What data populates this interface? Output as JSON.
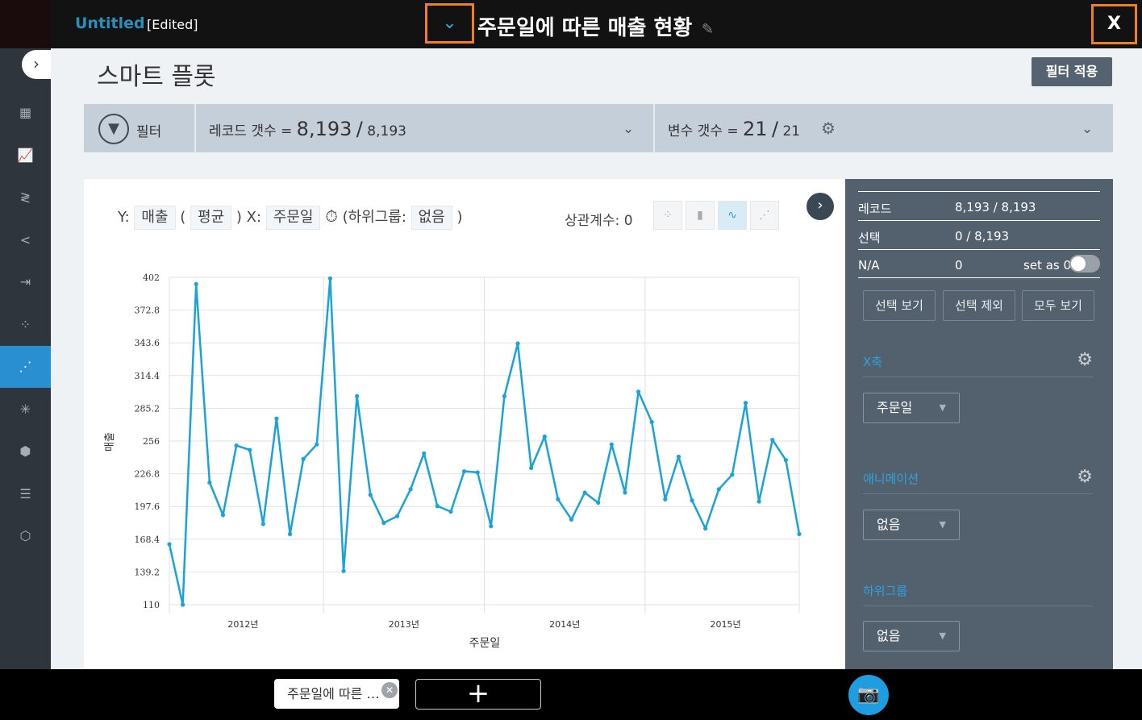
{
  "header": {
    "app_name": "Untitled",
    "edited_label": "[Edited]",
    "dropdown_icon": "chevron-down-icon",
    "doc_title": "주문일에 따른 매출 현황",
    "close_label": "X"
  },
  "sidebar": {
    "toggle_icon": "chevron-right-icon",
    "items": [
      {
        "icon": "dashboard-icon",
        "glyph": "▦"
      },
      {
        "icon": "bar-chart-icon",
        "glyph": "📈"
      },
      {
        "icon": "flow-icon",
        "glyph": "≷"
      },
      {
        "icon": "share-icon",
        "glyph": "<"
      },
      {
        "icon": "merge-icon",
        "glyph": "⇥"
      },
      {
        "icon": "grid-dots-icon",
        "glyph": "⁘"
      },
      {
        "icon": "scatter-plot-icon",
        "glyph": "⋰",
        "active": true
      },
      {
        "icon": "network-icon",
        "glyph": "✳"
      },
      {
        "icon": "cube-icon",
        "glyph": "⬢"
      },
      {
        "icon": "bars-icon",
        "glyph": "☰"
      },
      {
        "icon": "hexagon-icon",
        "glyph": "⬡"
      }
    ]
  },
  "page": {
    "title": "스마트 플롯",
    "apply_filter": "필터 적용"
  },
  "filterbar": {
    "filter_label": "필터",
    "record_label": "레코드 갯수 =",
    "record_value": "8,193",
    "record_sep": "/",
    "record_total": "8,193",
    "var_label": "변수 갯수 =",
    "var_value": "21",
    "var_sep": "/",
    "var_total": "21"
  },
  "chart_header": {
    "y_prefix": "Y:",
    "y_var": "매출",
    "open_paren": "(",
    "agg": "평균",
    "close_paren": ")",
    "x_prefix": "X:",
    "x_var": "주문일",
    "subgroup_label": "(하위그룹:",
    "subgroup_value": "없음",
    "subgroup_close": ")",
    "corr_label": "상관계수: 0"
  },
  "chart_data": {
    "type": "line",
    "xlabel": "주문일",
    "ylabel": "매출",
    "ylim": [
      110,
      402
    ],
    "yticks": [
      "402",
      "372.8",
      "343.6",
      "314.4",
      "285.2",
      "256",
      "226.8",
      "197.6",
      "168.4",
      "139.2",
      "110"
    ],
    "xtick_labels": [
      "2012년",
      "2013년",
      "2014년",
      "2015년"
    ],
    "x_start": "2012-01",
    "x_end": "2015-12",
    "grid": true,
    "color": "#1aa3d9",
    "values": [
      164,
      110,
      396,
      219,
      190,
      252,
      248,
      182,
      276,
      173,
      240,
      253,
      401,
      140,
      296,
      208,
      183,
      189,
      213,
      245,
      198,
      193,
      229,
      228,
      180,
      296,
      343,
      232,
      260,
      204,
      186,
      210,
      201,
      253,
      210,
      300,
      273,
      204,
      242,
      203,
      178,
      213,
      226,
      290,
      202,
      257,
      239,
      173
    ]
  },
  "right_panel": {
    "record_label": "레코드",
    "record_value": "8,193 / 8,193",
    "select_label": "선택",
    "select_value": "0 / 8,193",
    "na_label": "N/A",
    "na_value": "0",
    "set_zero_label": "set as 0",
    "set_zero_on": false,
    "btn_show_selected": "선택 보기",
    "btn_exclude_selected": "선택 제외",
    "btn_show_all": "모두 보기",
    "x_axis_label": "X축",
    "x_axis_value": "주문일",
    "animation_label": "애니메이션",
    "animation_value": "없음",
    "subgroup_label": "하위그룹",
    "subgroup_value": "없음"
  },
  "bottom": {
    "tab_label": "주문일에 따른 …",
    "add_label": "+"
  }
}
